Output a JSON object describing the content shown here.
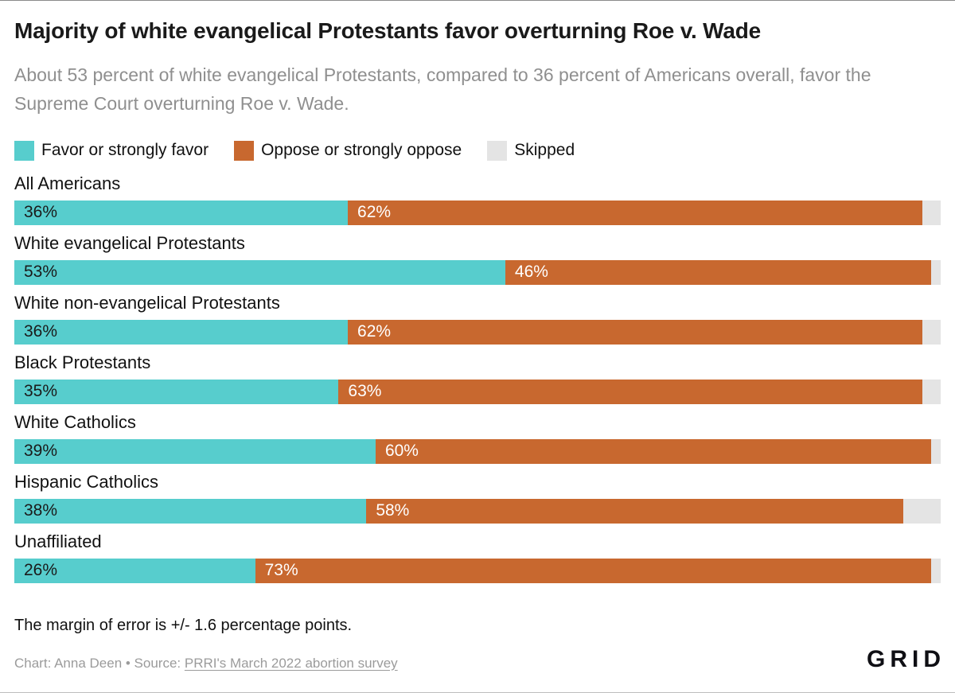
{
  "header": {
    "title": "Majority of white evangelical Protestants favor overturning Roe v. Wade",
    "subtitle": "About 53 percent of white evangelical Protestants, compared to 36 percent of Americans overall, favor the Supreme Court overturning Roe v. Wade."
  },
  "footer": {
    "note": "The margin of error is +/- 1.6 percentage points.",
    "credit_prefix": "Chart: Anna Deen • Source: ",
    "source_link_text": "PRRI's March 2022 abortion survey",
    "logo_text": "GRID"
  },
  "colors": {
    "favor": "#57cdcd",
    "oppose": "#c8682f",
    "skipped": "#e4e4e4",
    "title_text": "#1a1a1a",
    "muted_text": "#8f8f8f",
    "favor_label_text": "#1a1a1a",
    "oppose_label_text": "#ffffff"
  },
  "chart_data": {
    "type": "bar",
    "orientation": "horizontal",
    "stacked": true,
    "xlim": [
      0,
      100
    ],
    "value_suffix": "%",
    "grid": false,
    "legend_position": "top",
    "categories": [
      "All Americans",
      "White evangelical Protestants",
      "White non-evangelical Protestants",
      "Black Protestants",
      "White Catholics",
      "Hispanic Catholics",
      "Unaffiliated"
    ],
    "series": [
      {
        "key": "favor",
        "name": "Favor or strongly favor",
        "color": "#57cdcd",
        "label_color": "#1a1a1a",
        "show_labels": true,
        "values": [
          36,
          53,
          36,
          35,
          39,
          38,
          26
        ]
      },
      {
        "key": "oppose",
        "name": "Oppose or strongly oppose",
        "color": "#c8682f",
        "label_color": "#ffffff",
        "show_labels": true,
        "values": [
          62,
          46,
          62,
          63,
          60,
          58,
          73
        ]
      },
      {
        "key": "skipped",
        "name": "Skipped",
        "color": "#e4e4e4",
        "label_color": null,
        "show_labels": false,
        "values": [
          2,
          1,
          2,
          2,
          1,
          4,
          1
        ]
      }
    ]
  }
}
